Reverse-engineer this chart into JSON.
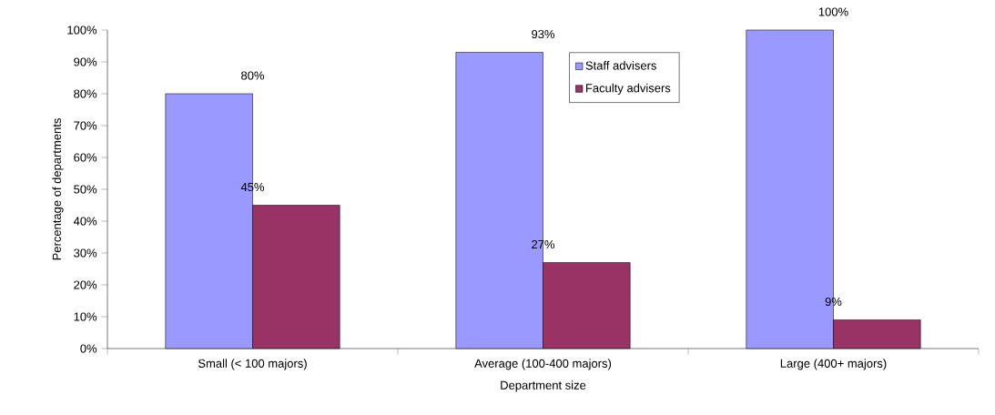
{
  "chart_data": {
    "type": "bar",
    "xlabel": "Department size",
    "ylabel": "Percentage of departments",
    "categories": [
      "Small (< 100 majors)",
      "Average (100-400 majors)",
      "Large (400+ majors)"
    ],
    "series": [
      {
        "name": "Staff advisers",
        "color": "#9999ff",
        "values": [
          80,
          93,
          100
        ],
        "value_labels": [
          "80%",
          "93%",
          "100%"
        ]
      },
      {
        "name": "Faculty advisers",
        "color": "#993366",
        "values": [
          45,
          27,
          9
        ],
        "value_labels": [
          "45%",
          "27%",
          "9%"
        ]
      }
    ],
    "ylim": [
      0,
      100
    ],
    "yticks": [
      {
        "value": 0,
        "label": "0%"
      },
      {
        "value": 10,
        "label": "10%"
      },
      {
        "value": 20,
        "label": "20%"
      },
      {
        "value": 30,
        "label": "30%"
      },
      {
        "value": 40,
        "label": "40%"
      },
      {
        "value": 50,
        "label": "50%"
      },
      {
        "value": 60,
        "label": "60%"
      },
      {
        "value": 70,
        "label": "70%"
      },
      {
        "value": 80,
        "label": "80%"
      },
      {
        "value": 90,
        "label": "90%"
      },
      {
        "value": 100,
        "label": "100%"
      }
    ],
    "legend": "top",
    "grid": false
  }
}
